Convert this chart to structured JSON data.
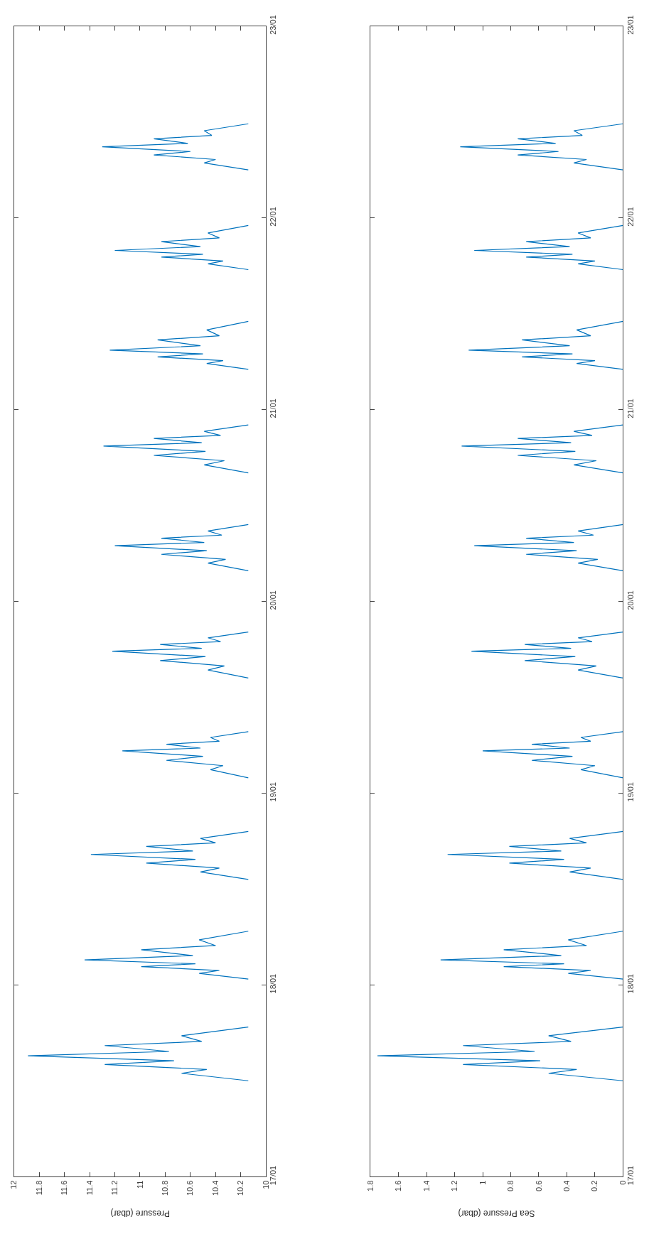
{
  "chart_data": [
    {
      "type": "line",
      "orientation": "horizontal",
      "xlabel": "Pressure (dbar)",
      "xlim": [
        12,
        10
      ],
      "xticks": [
        10,
        10.2,
        10.4,
        10.6,
        10.8,
        11,
        11.2,
        11.4,
        11.6,
        11.8,
        12
      ],
      "ylim": [
        "--01-17",
        "--01-23"
      ],
      "yticks": [
        {
          "value": "--01-17",
          "label": "17/01"
        },
        {
          "value": "--01-18",
          "label": "18/01"
        },
        {
          "value": "--01-19",
          "label": "19/01"
        },
        {
          "value": "--01-20",
          "label": "20/01"
        },
        {
          "value": "--01-21",
          "label": "21/01"
        },
        {
          "value": "--01-22",
          "label": "22/01"
        },
        {
          "value": "--01-23",
          "label": "23/01"
        }
      ],
      "x": [
        "--01-17T12:00",
        "--01-17T12:56",
        "--01-17T13:25",
        "--01-17T14:02",
        "--01-17T14:30",
        "--01-17T15:07",
        "--01-17T15:40",
        "--01-17T16:24",
        "--01-17T16:55",
        "--01-17T17:38",
        "--01-17T18:43",
        "--01-17T21:00",
        "--01-18T00:43",
        "--01-18T01:26",
        "--01-18T01:48",
        "--01-18T02:17",
        "--01-18T02:38",
        "--01-18T03:07",
        "--01-18T03:40",
        "--01-18T04:24",
        "--01-18T04:55",
        "--01-18T05:38",
        "--01-18T06:43",
        "--01-18T10:00",
        "--01-18T13:12",
        "--01-18T14:08",
        "--01-18T14:37",
        "--01-18T15:14",
        "--01-18T15:42",
        "--01-18T16:19",
        "--01-18T16:45",
        "--01-18T17:20",
        "--01-18T17:46",
        "--01-18T18:20",
        "--01-18T19:12",
        "--01-18T22:00",
        "--01-19T01:55",
        "--01-19T02:56",
        "--01-19T03:26",
        "--01-19T04:06",
        "--01-19T04:36",
        "--01-19T05:17",
        "--01-19T05:38",
        "--01-19T06:07",
        "--01-19T06:29",
        "--01-19T06:58",
        "--01-19T07:41",
        "--01-19T11:00",
        "--01-19T14:24",
        "--01-19T15:24",
        "--01-19T15:55",
        "--01-19T16:35",
        "--01-19T17:05",
        "--01-19T17:46",
        "--01-19T18:07",
        "--01-19T18:36",
        "--01-19T18:58",
        "--01-19T19:26",
        "--01-19T20:10",
        "--01-19T23:00",
        "--01-20T03:50",
        "--01-20T04:47",
        "--01-20T05:15",
        "--01-20T05:53",
        "--01-20T06:20",
        "--01-20T06:58",
        "--01-20T07:22",
        "--01-20T07:54",
        "--01-20T08:17",
        "--01-20T08:48",
        "--01-20T09:36",
        "--01-20T13:00",
        "--01-20T16:05",
        "--01-20T17:05",
        "--01-20T17:36",
        "--01-20T18:16",
        "--01-20T18:46",
        "--01-20T19:26",
        "--01-20T19:51",
        "--01-20T20:23",
        "--01-20T20:46",
        "--01-20T21:17",
        "--01-20T22:05",
        "--01-21T02:00",
        "--01-21T05:02",
        "--01-21T05:46",
        "--01-21T06:07",
        "--01-21T06:36",
        "--01-21T06:58",
        "--01-21T07:26",
        "--01-21T07:59",
        "--01-21T08:43",
        "--01-21T09:14",
        "--01-21T09:58",
        "--01-21T11:02",
        "--01-21T14:00",
        "--01-21T17:31",
        "--01-21T18:14",
        "--01-21T18:36",
        "--01-21T19:05",
        "--01-21T19:26",
        "--01-21T19:55",
        "--01-21T20:24",
        "--01-21T21:01",
        "--01-21T21:29",
        "--01-21T22:06",
        "--01-21T23:02",
        "--01-22T02:00",
        "--01-22T06:00",
        "--01-22T06:52",
        "--01-22T07:18",
        "--01-22T07:52",
        "--01-22T08:18",
        "--01-22T08:53",
        "--01-22T09:19",
        "--01-22T09:53",
        "--01-22T10:19",
        "--01-22T10:54",
        "--01-22T11:46"
      ],
      "series": [
        {
          "color": "#0072bd",
          "values": [
            10.14,
            10.67,
            10.47,
            11.28,
            10.73,
            11.89,
            10.77,
            11.28,
            10.51,
            10.67,
            10.14,
            null,
            10.14,
            10.53,
            10.37,
            10.99,
            10.56,
            11.44,
            10.58,
            10.99,
            10.4,
            10.53,
            10.14,
            null,
            10.14,
            10.52,
            10.37,
            10.95,
            10.56,
            11.39,
            10.58,
            10.95,
            10.4,
            10.52,
            10.14,
            null,
            10.14,
            10.44,
            10.34,
            10.79,
            10.5,
            11.14,
            10.52,
            10.79,
            10.37,
            10.44,
            10.14,
            null,
            10.14,
            10.46,
            10.33,
            10.84,
            10.48,
            11.22,
            10.51,
            10.84,
            10.36,
            10.46,
            10.14,
            null,
            10.14,
            10.46,
            10.32,
            10.83,
            10.47,
            11.2,
            10.49,
            10.83,
            10.35,
            10.46,
            10.14,
            null,
            10.14,
            10.49,
            10.33,
            10.89,
            10.48,
            11.29,
            10.51,
            10.89,
            10.36,
            10.49,
            10.14,
            null,
            10.14,
            10.47,
            10.34,
            10.86,
            10.5,
            11.24,
            10.52,
            10.86,
            10.37,
            10.47,
            10.14,
            null,
            10.14,
            10.46,
            10.34,
            10.83,
            10.5,
            11.2,
            10.52,
            10.83,
            10.37,
            10.46,
            10.14,
            null,
            10.14,
            10.49,
            10.4,
            10.89,
            10.6,
            11.3,
            10.62,
            10.89,
            10.43,
            10.49,
            10.14
          ]
        }
      ]
    },
    {
      "type": "line",
      "orientation": "horizontal",
      "xlabel": "Sea Pressure (dbar)",
      "xlim": [
        1.8,
        0
      ],
      "xticks": [
        0,
        0.2,
        0.4,
        0.6,
        0.8,
        1,
        1.2,
        1.4,
        1.6,
        1.8
      ],
      "ylim": [
        "--01-17",
        "--01-23"
      ],
      "yticks": [
        {
          "value": "--01-17",
          "label": "17/01"
        },
        {
          "value": "--01-18",
          "label": "18/01"
        },
        {
          "value": "--01-19",
          "label": "19/01"
        },
        {
          "value": "--01-20",
          "label": "20/01"
        },
        {
          "value": "--01-21",
          "label": "21/01"
        },
        {
          "value": "--01-22",
          "label": "22/01"
        },
        {
          "value": "--01-23",
          "label": "23/01"
        }
      ],
      "x": [
        "--01-17T12:00",
        "--01-17T12:56",
        "--01-17T13:25",
        "--01-17T14:02",
        "--01-17T14:30",
        "--01-17T15:07",
        "--01-17T15:40",
        "--01-17T16:24",
        "--01-17T16:55",
        "--01-17T17:38",
        "--01-17T18:43",
        "--01-17T21:00",
        "--01-18T00:43",
        "--01-18T01:26",
        "--01-18T01:48",
        "--01-18T02:17",
        "--01-18T02:38",
        "--01-18T03:07",
        "--01-18T03:40",
        "--01-18T04:24",
        "--01-18T04:55",
        "--01-18T05:38",
        "--01-18T06:43",
        "--01-18T10:00",
        "--01-18T13:12",
        "--01-18T14:08",
        "--01-18T14:37",
        "--01-18T15:14",
        "--01-18T15:42",
        "--01-18T16:19",
        "--01-18T16:45",
        "--01-18T17:20",
        "--01-18T17:46",
        "--01-18T18:20",
        "--01-18T19:12",
        "--01-18T22:00",
        "--01-19T01:55",
        "--01-19T02:56",
        "--01-19T03:26",
        "--01-19T04:06",
        "--01-19T04:36",
        "--01-19T05:17",
        "--01-19T05:38",
        "--01-19T06:07",
        "--01-19T06:29",
        "--01-19T06:58",
        "--01-19T07:41",
        "--01-19T11:00",
        "--01-19T14:24",
        "--01-19T15:24",
        "--01-19T15:55",
        "--01-19T16:35",
        "--01-19T17:05",
        "--01-19T17:46",
        "--01-19T18:07",
        "--01-19T18:36",
        "--01-19T18:58",
        "--01-19T19:26",
        "--01-19T20:10",
        "--01-19T23:00",
        "--01-20T03:50",
        "--01-20T04:47",
        "--01-20T05:15",
        "--01-20T05:53",
        "--01-20T06:20",
        "--01-20T06:58",
        "--01-20T07:22",
        "--01-20T07:54",
        "--01-20T08:17",
        "--01-20T08:48",
        "--01-20T09:36",
        "--01-20T13:00",
        "--01-20T16:05",
        "--01-20T17:05",
        "--01-20T17:36",
        "--01-20T18:16",
        "--01-20T18:46",
        "--01-20T19:26",
        "--01-20T19:51",
        "--01-20T20:23",
        "--01-20T20:46",
        "--01-20T21:17",
        "--01-20T22:05",
        "--01-21T02:00",
        "--01-21T05:02",
        "--01-21T05:46",
        "--01-21T06:07",
        "--01-21T06:36",
        "--01-21T06:58",
        "--01-21T07:26",
        "--01-21T07:59",
        "--01-21T08:43",
        "--01-21T09:14",
        "--01-21T09:58",
        "--01-21T11:02",
        "--01-21T14:00",
        "--01-21T17:31",
        "--01-21T18:14",
        "--01-21T18:36",
        "--01-21T19:05",
        "--01-21T19:26",
        "--01-21T19:55",
        "--01-21T20:24",
        "--01-21T21:01",
        "--01-21T21:29",
        "--01-21T22:06",
        "--01-21T23:02",
        "--01-22T02:00",
        "--01-22T06:00",
        "--01-22T06:52",
        "--01-22T07:18",
        "--01-22T07:52",
        "--01-22T08:18",
        "--01-22T08:53",
        "--01-22T09:19",
        "--01-22T09:53",
        "--01-22T10:19",
        "--01-22T10:54",
        "--01-22T11:46"
      ],
      "series": [
        {
          "color": "#0072bd",
          "values": [
            0,
            0.53,
            0.33,
            1.14,
            0.59,
            1.75,
            0.63,
            1.14,
            0.37,
            0.53,
            0,
            null,
            0,
            0.39,
            0.23,
            0.85,
            0.42,
            1.3,
            0.44,
            0.85,
            0.26,
            0.39,
            0,
            null,
            0,
            0.38,
            0.23,
            0.81,
            0.42,
            1.25,
            0.44,
            0.81,
            0.26,
            0.38,
            0,
            null,
            0,
            0.3,
            0.2,
            0.65,
            0.36,
            1.0,
            0.38,
            0.65,
            0.23,
            0.3,
            0,
            null,
            0,
            0.32,
            0.19,
            0.7,
            0.34,
            1.08,
            0.37,
            0.7,
            0.22,
            0.32,
            0,
            null,
            0,
            0.32,
            0.18,
            0.69,
            0.33,
            1.06,
            0.35,
            0.69,
            0.21,
            0.32,
            0,
            null,
            0,
            0.35,
            0.19,
            0.75,
            0.34,
            1.15,
            0.37,
            0.75,
            0.22,
            0.35,
            0,
            null,
            0,
            0.33,
            0.2,
            0.72,
            0.36,
            1.1,
            0.38,
            0.72,
            0.23,
            0.33,
            0,
            null,
            0,
            0.32,
            0.2,
            0.69,
            0.36,
            1.06,
            0.38,
            0.69,
            0.23,
            0.32,
            0,
            null,
            0,
            0.35,
            0.26,
            0.75,
            0.46,
            1.16,
            0.48,
            0.75,
            0.29,
            0.35,
            0
          ]
        }
      ]
    }
  ]
}
